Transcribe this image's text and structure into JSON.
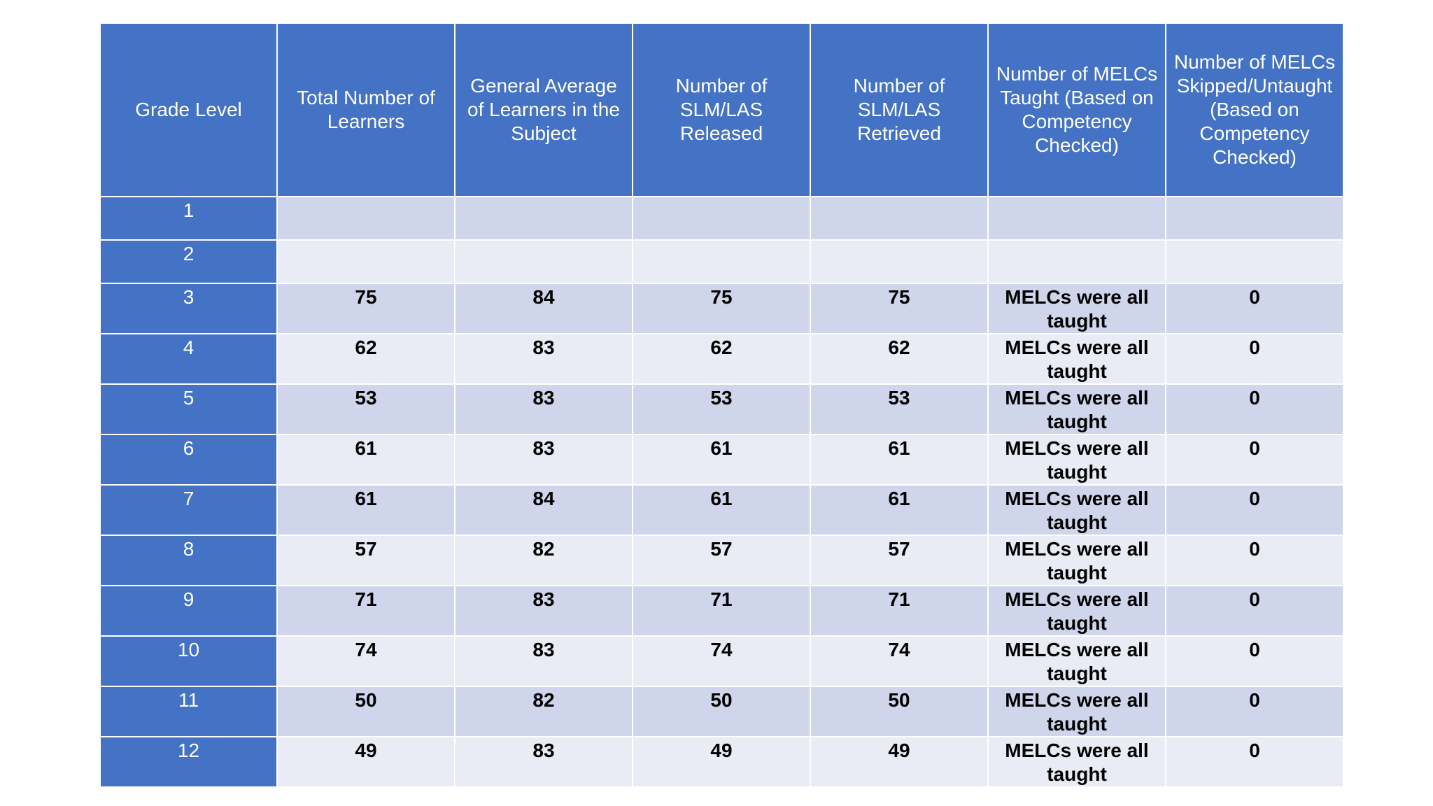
{
  "colors": {
    "header_bg": "#4472c4",
    "row_dark": "#cfd5ea",
    "row_light": "#e9ebf5"
  },
  "headers": [
    "Grade Level",
    "Total Number of Learners",
    "General Average of Learners in the Subject",
    "Number of SLM/LAS Released",
    "Number of SLM/LAS Retrieved",
    "Number of MELCs Taught (Based on Competency Checked)",
    "Number of MELCs Skipped/Untaught (Based on Competency Checked)"
  ],
  "rows": [
    [
      "1",
      "",
      "",
      "",
      "",
      "",
      ""
    ],
    [
      "2",
      "",
      "",
      "",
      "",
      "",
      ""
    ],
    [
      "3",
      "75",
      "84",
      "75",
      "75",
      "MELCs were all taught",
      "0"
    ],
    [
      "4",
      "62",
      "83",
      "62",
      "62",
      "MELCs were all taught",
      "0"
    ],
    [
      "5",
      "53",
      "83",
      "53",
      "53",
      "MELCs were all taught",
      "0"
    ],
    [
      "6",
      "61",
      "83",
      "61",
      "61",
      "MELCs were all taught",
      "0"
    ],
    [
      "7",
      "61",
      "84",
      "61",
      "61",
      "MELCs were all taught",
      "0"
    ],
    [
      "8",
      "57",
      "82",
      "57",
      "57",
      "MELCs were all taught",
      "0"
    ],
    [
      "9",
      "71",
      "83",
      "71",
      "71",
      "MELCs were all taught",
      "0"
    ],
    [
      "10",
      "74",
      "83",
      "74",
      "74",
      "MELCs were all taught",
      "0"
    ],
    [
      "11",
      "50",
      "82",
      "50",
      "50",
      "MELCs were all taught",
      "0"
    ],
    [
      "12",
      "49",
      "83",
      "49",
      "49",
      "MELCs were all taught",
      "0"
    ]
  ]
}
